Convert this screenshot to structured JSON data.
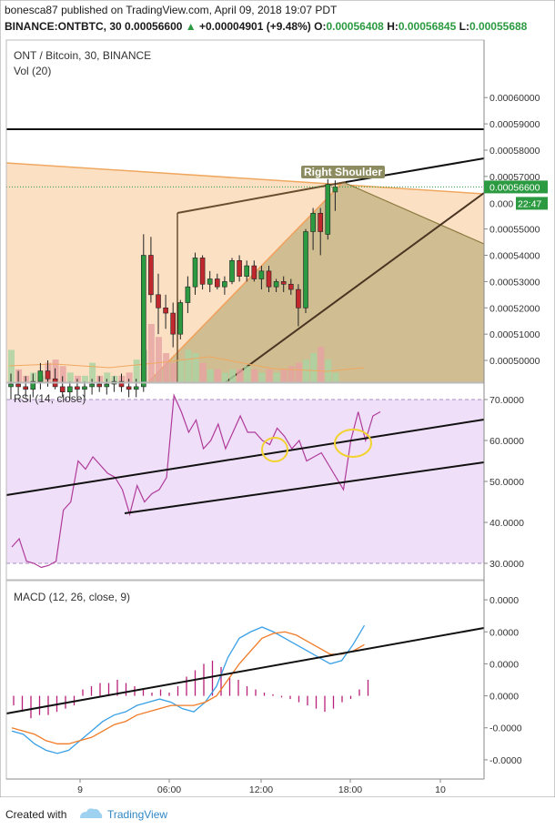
{
  "header": {
    "user": "bonesca87",
    "published": "published on TradingView.com, April 09, 2018 19:07 PDT",
    "symbol": "BINANCE:ONTBTC, 30",
    "price": "0.00056600",
    "change": "+0.00004901 (+9.48%)",
    "o_label": "O:",
    "o_value": "0.00056408",
    "h_label": "H:",
    "h_value": "0.00056845",
    "l_label": "L:",
    "l_value": "0.00055688"
  },
  "footer": {
    "created_with": "Created with",
    "brand": "TradingView"
  },
  "colors": {
    "up": "#2b9a40",
    "down": "#c0282e",
    "vol_up": "#a9d3a3",
    "vol_down": "#e6a3a3",
    "orange_zone": "#fbe0c4",
    "olive_zone": "#c8b68a",
    "rsi_band": "#efdff8",
    "macd_line": "#3aa0e6",
    "signal_line": "#f07b27",
    "histogram": "#b8207a",
    "trendline": "#111111"
  },
  "chart_data": [
    {
      "type": "candlestick",
      "title": "ONT / Bitcoin, 30, BINANCE",
      "subtitle": "Vol (20)",
      "x_ticks": [
        "9",
        "06:00",
        "12:00",
        "18:00",
        "10"
      ],
      "x_tick_index": [
        5,
        18,
        30,
        42,
        54
      ],
      "y_ticks": [
        "0.00060000",
        "0.00059000",
        "0.00058000",
        "0.00057000",
        "0.00055000",
        "0.00054000",
        "0.00053000",
        "0.00052000",
        "0.00051000",
        "0.00050000"
      ],
      "y_tick_values": [
        0.0006,
        0.00059,
        0.00058,
        0.00057,
        0.00055,
        0.00054,
        0.00053,
        0.00052,
        0.00051,
        0.0005
      ],
      "ylim": [
        0.0004917,
        0.0006212
      ],
      "last_price_label": "0.00056600",
      "last_price": 0.000566,
      "countdown_label": "22:47",
      "countdown_value_label": "0.000",
      "pattern_label": "Right Shoulder",
      "candles": [
        {
          "o": 0.00049,
          "h": 0.000495,
          "l": 0.000485,
          "c": 0.000491
        },
        {
          "o": 0.000491,
          "h": 0.000496,
          "l": 0.000487,
          "c": 0.00049
        },
        {
          "o": 0.00049,
          "h": 0.000494,
          "l": 0.000486,
          "c": 0.000489
        },
        {
          "o": 0.000489,
          "h": 0.000495,
          "l": 0.000486,
          "c": 0.000492
        },
        {
          "o": 0.000492,
          "h": 0.000499,
          "l": 0.000489,
          "c": 0.000496
        },
        {
          "o": 0.000496,
          "h": 0.0005,
          "l": 0.00049,
          "c": 0.000493
        },
        {
          "o": 0.000493,
          "h": 0.000497,
          "l": 0.000489,
          "c": 0.00049
        },
        {
          "o": 0.00049,
          "h": 0.000494,
          "l": 0.000486,
          "c": 0.000488
        },
        {
          "o": 0.000488,
          "h": 0.000492,
          "l": 0.000485,
          "c": 0.00049
        },
        {
          "o": 0.00049,
          "h": 0.000493,
          "l": 0.000486,
          "c": 0.000489
        },
        {
          "o": 0.000489,
          "h": 0.000492,
          "l": 0.000486,
          "c": 0.00049
        },
        {
          "o": 0.00049,
          "h": 0.000493,
          "l": 0.000487,
          "c": 0.000491
        },
        {
          "o": 0.000491,
          "h": 0.000494,
          "l": 0.000488,
          "c": 0.00049
        },
        {
          "o": 0.00049,
          "h": 0.000493,
          "l": 0.000487,
          "c": 0.000491
        },
        {
          "o": 0.000491,
          "h": 0.000494,
          "l": 0.000488,
          "c": 0.000492
        },
        {
          "o": 0.000492,
          "h": 0.000495,
          "l": 0.000488,
          "c": 0.00049
        },
        {
          "o": 0.00049,
          "h": 0.000493,
          "l": 0.000486,
          "c": 0.000489
        },
        {
          "o": 0.000489,
          "h": 0.000493,
          "l": 0.000486,
          "c": 0.00049
        },
        {
          "o": 0.00049,
          "h": 0.000548,
          "l": 0.000488,
          "c": 0.00054
        },
        {
          "o": 0.00054,
          "h": 0.000547,
          "l": 0.000522,
          "c": 0.000525
        },
        {
          "o": 0.000525,
          "h": 0.000533,
          "l": 0.00051,
          "c": 0.00052
        },
        {
          "o": 0.00052,
          "h": 0.000525,
          "l": 0.000512,
          "c": 0.000518
        },
        {
          "o": 0.000518,
          "h": 0.000522,
          "l": 0.000505,
          "c": 0.00051
        },
        {
          "o": 0.00051,
          "h": 0.000523,
          "l": 0.000508,
          "c": 0.000522
        },
        {
          "o": 0.000522,
          "h": 0.000532,
          "l": 0.000518,
          "c": 0.000528
        },
        {
          "o": 0.000528,
          "h": 0.000541,
          "l": 0.000525,
          "c": 0.000539
        },
        {
          "o": 0.000539,
          "h": 0.00054,
          "l": 0.000527,
          "c": 0.000529
        },
        {
          "o": 0.000529,
          "h": 0.000534,
          "l": 0.000526,
          "c": 0.000531
        },
        {
          "o": 0.000531,
          "h": 0.000533,
          "l": 0.000527,
          "c": 0.000528
        },
        {
          "o": 0.000528,
          "h": 0.000532,
          "l": 0.000525,
          "c": 0.00053
        },
        {
          "o": 0.00053,
          "h": 0.000539,
          "l": 0.000529,
          "c": 0.000538
        },
        {
          "o": 0.000538,
          "h": 0.00054,
          "l": 0.00053,
          "c": 0.000532
        },
        {
          "o": 0.000532,
          "h": 0.000538,
          "l": 0.00053,
          "c": 0.000536
        },
        {
          "o": 0.000536,
          "h": 0.000538,
          "l": 0.00053,
          "c": 0.000531
        },
        {
          "o": 0.000531,
          "h": 0.000536,
          "l": 0.000527,
          "c": 0.000534
        },
        {
          "o": 0.000534,
          "h": 0.000536,
          "l": 0.000526,
          "c": 0.000528
        },
        {
          "o": 0.000528,
          "h": 0.000531,
          "l": 0.000526,
          "c": 0.00053
        },
        {
          "o": 0.00053,
          "h": 0.000532,
          "l": 0.000526,
          "c": 0.000529
        },
        {
          "o": 0.000529,
          "h": 0.000531,
          "l": 0.000525,
          "c": 0.000527
        },
        {
          "o": 0.000527,
          "h": 0.000529,
          "l": 0.000513,
          "c": 0.00052
        },
        {
          "o": 0.00052,
          "h": 0.00055,
          "l": 0.000518,
          "c": 0.000549
        },
        {
          "o": 0.000549,
          "h": 0.000558,
          "l": 0.000542,
          "c": 0.000556
        },
        {
          "o": 0.000556,
          "h": 0.000558,
          "l": 0.00054,
          "c": 0.000549
        },
        {
          "o": 0.000548,
          "h": 0.000569,
          "l": 0.000546,
          "c": 0.000567
        },
        {
          "o": 0.0005641,
          "h": 0.0005685,
          "l": 0.0005569,
          "c": 0.000566
        }
      ],
      "volume": [
        0.5,
        0.2,
        0.1,
        0.15,
        0.1,
        0.3,
        0.35,
        0.25,
        0.15,
        0.1,
        0.1,
        0.3,
        0.1,
        0.15,
        0.1,
        0.1,
        0.15,
        0.35,
        0.5,
        0.9,
        0.7,
        0.45,
        0.3,
        0.35,
        0.5,
        0.45,
        0.3,
        0.2,
        0.2,
        0.15,
        0.2,
        0.2,
        0.25,
        0.2,
        0.15,
        0.2,
        0.15,
        0.2,
        0.25,
        0.3,
        0.35,
        0.45,
        0.55,
        0.35,
        0.15
      ]
    },
    {
      "type": "line",
      "title": "RSI (14, close)",
      "y_ticks": [
        "70.0000",
        "60.0000",
        "50.0000",
        "40.0000",
        "30.0000"
      ],
      "y_tick_values": [
        70,
        60,
        50,
        40,
        30
      ],
      "ylim": [
        26,
        74
      ],
      "band": [
        30,
        70
      ],
      "values": [
        34,
        36,
        30.5,
        30,
        29,
        29.5,
        30.5,
        43,
        45,
        55,
        53,
        56,
        54,
        52,
        51,
        48,
        42,
        49,
        45,
        47,
        48,
        51,
        71,
        67,
        62,
        65,
        58,
        60,
        64,
        58,
        62,
        66,
        62,
        62,
        60,
        59,
        63,
        61,
        58,
        60,
        55,
        56,
        57,
        54,
        51,
        48,
        60,
        67,
        60,
        66,
        67
      ]
    },
    {
      "type": "line",
      "title": "MACD (12, 26, close, 9)",
      "y_ticks": [
        "0.0000",
        "0.0000",
        "0.0000",
        "0.0000",
        "-0.0000",
        "-0.0000"
      ],
      "y_tick_values": [
        5,
        4,
        3,
        2,
        1,
        0
      ],
      "ylim": [
        -0.6,
        5.6
      ],
      "series": [
        {
          "values": [
            0.9,
            0.8,
            0.5,
            0.3,
            0.2,
            0.3,
            0.6,
            0.9,
            1.2,
            1.4,
            1.5,
            1.7,
            1.8,
            1.9,
            1.8,
            1.6,
            1.5,
            1.8,
            2.3,
            3.2,
            3.8,
            4.0,
            4.15,
            4.0,
            3.8,
            3.6,
            3.4,
            3.2,
            3.0,
            3.1,
            3.6,
            4.2
          ]
        },
        {
          "values": [
            1.0,
            0.9,
            0.8,
            0.6,
            0.5,
            0.5,
            0.6,
            0.7,
            0.9,
            1.1,
            1.2,
            1.4,
            1.5,
            1.6,
            1.7,
            1.7,
            1.7,
            1.8,
            2.0,
            2.5,
            3.0,
            3.4,
            3.8,
            3.95,
            4.0,
            3.9,
            3.7,
            3.5,
            3.3,
            3.3,
            3.4,
            3.6
          ]
        }
      ],
      "histogram": [
        -0.3,
        -0.5,
        -0.7,
        -0.6,
        -0.6,
        -0.5,
        -0.4,
        -0.3,
        0.2,
        0.3,
        0.4,
        0.4,
        0.5,
        0.4,
        0.3,
        0.2,
        0.1,
        0.2,
        0.1,
        0.3,
        0.6,
        0.8,
        1.0,
        1.1,
        0.9,
        0.6,
        0.5,
        0.3,
        0.2,
        0.1,
        0.05,
        -0.05,
        -0.1,
        -0.2,
        -0.3,
        -0.4,
        -0.5,
        -0.4,
        -0.2,
        -0.1,
        0.2,
        0.5
      ]
    }
  ]
}
